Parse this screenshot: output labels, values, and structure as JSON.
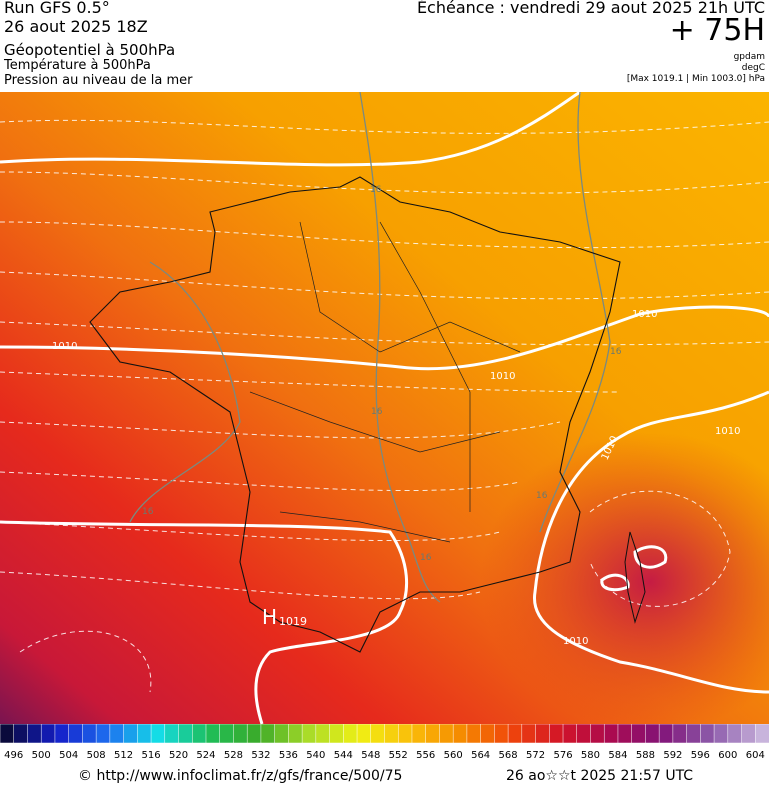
{
  "header": {
    "run": "Run GFS 0.5°",
    "date": "26 aout 2025 18Z",
    "title": "Géopotentiel à 500hPa",
    "layer2": "Température à 500hPa",
    "layer3": "Pression au niveau de la mer",
    "echeance": "Échéance : vendredi 29 aout 2025 21h UTC",
    "lead": "+ 75H",
    "unit1": "gpdam",
    "unit2": "degC",
    "unit3": "[Max 1019.1 | Min 1003.0] hPa"
  },
  "map": {
    "isobar_labels": [
      "1010",
      "1010",
      "1010",
      "1010",
      "1010",
      "1010"
    ],
    "temp_labels": [
      "16",
      "16",
      "16",
      "16",
      "16",
      "16"
    ],
    "high": {
      "symbol": "H",
      "value": "1019"
    }
  },
  "colorbar": {
    "ticks": [
      496,
      500,
      504,
      508,
      512,
      516,
      520,
      524,
      528,
      532,
      536,
      540,
      544,
      548,
      552,
      556,
      560,
      564,
      568,
      572,
      576,
      580,
      584,
      588,
      592,
      596,
      600,
      604
    ]
  },
  "footer": {
    "url": "© http://www.infoclimat.fr/z/gfs/france/500/75",
    "timestamp": "26 ao☆☆t 2025 21:57 UTC"
  }
}
